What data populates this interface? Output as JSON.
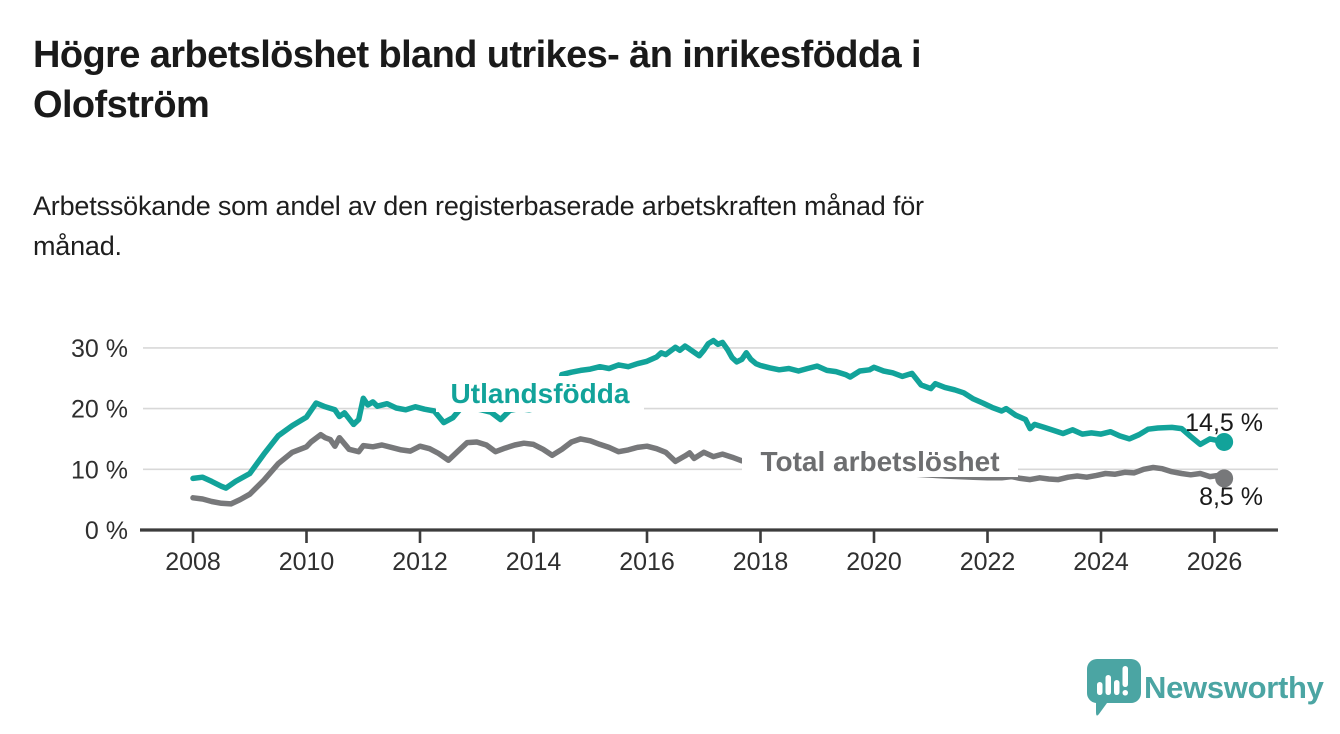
{
  "header": {
    "title_lines": [
      "Högre arbetslöshet bland utrikes- än inrikesfödda i",
      "Olofström"
    ],
    "subtitle_lines": [
      "Arbetssökande som andel av den registerbaserade arbetskraften månad för",
      "månad."
    ]
  },
  "footer": {
    "brand": "Newsworthy"
  },
  "colors": {
    "foreign_born_line": "#12a39a",
    "total_line": "#77787a",
    "total_label": "#6d6e70",
    "grid": "#d8d8d8",
    "axis": "#3c3c3c",
    "axis_text": "#2f2f2f",
    "end_label_text": "#1a1a1a",
    "logo_teal": "#4ba5a3"
  },
  "chart_data": {
    "type": "line",
    "title": "Högre arbetslöshet bland utrikes- än inrikesfödda i Olofström",
    "subtitle": "Arbetssökande som andel av den registerbaserade arbetskraften månad för månad.",
    "unit": "%",
    "grid": "horizontal",
    "legend_position": "inline-labels",
    "x_axis": {
      "tick_values": [
        2008,
        2010,
        2012,
        2014,
        2016,
        2018,
        2020,
        2022,
        2024,
        2026
      ],
      "tick_labels": [
        "2008",
        "2010",
        "2012",
        "2014",
        "2016",
        "2018",
        "2020",
        "2022",
        "2024",
        "2026"
      ],
      "range": [
        2007.1,
        2027.1
      ]
    },
    "y_axis": {
      "tick_values": [
        0,
        10,
        20,
        30
      ],
      "tick_labels": [
        "0 %",
        "10 %",
        "20 %",
        "30 %"
      ],
      "range": [
        0,
        33
      ]
    },
    "series": [
      {
        "name": "Utlandsfödda",
        "label": "Utlandsfödda",
        "color": "#12a39a",
        "label_color": "#12a39a",
        "end_label": "14,5 %",
        "end_value": 14.5,
        "points": [
          [
            2008.0,
            8.5
          ],
          [
            2008.17,
            8.7
          ],
          [
            2008.33,
            8.0
          ],
          [
            2008.5,
            7.2
          ],
          [
            2008.58,
            6.9
          ],
          [
            2008.75,
            8.0
          ],
          [
            2009.0,
            9.3
          ],
          [
            2009.25,
            12.5
          ],
          [
            2009.5,
            15.5
          ],
          [
            2009.75,
            17.2
          ],
          [
            2010.0,
            18.6
          ],
          [
            2010.17,
            20.9
          ],
          [
            2010.33,
            20.3
          ],
          [
            2010.5,
            19.8
          ],
          [
            2010.58,
            18.7
          ],
          [
            2010.67,
            19.3
          ],
          [
            2010.83,
            17.4
          ],
          [
            2010.92,
            18.2
          ],
          [
            2011.0,
            21.7
          ],
          [
            2011.08,
            20.6
          ],
          [
            2011.17,
            21.1
          ],
          [
            2011.25,
            20.4
          ],
          [
            2011.42,
            20.8
          ],
          [
            2011.58,
            20.1
          ],
          [
            2011.75,
            19.8
          ],
          [
            2011.92,
            20.3
          ],
          [
            2012.08,
            19.9
          ],
          [
            2012.25,
            19.6
          ],
          [
            2012.42,
            17.7
          ],
          [
            2012.58,
            18.5
          ],
          [
            2012.75,
            20.4
          ],
          [
            2012.92,
            20.1
          ],
          [
            2013.08,
            19.8
          ],
          [
            2013.25,
            19.4
          ],
          [
            2013.42,
            18.2
          ],
          [
            2013.58,
            19.7
          ],
          [
            2013.75,
            20.0
          ],
          [
            2013.92,
            19.8
          ],
          [
            2014.08,
            20.1
          ],
          [
            2014.25,
            20.0
          ],
          [
            2014.42,
            20.9
          ],
          [
            2014.5,
            25.6
          ],
          [
            2014.67,
            26.0
          ],
          [
            2014.83,
            26.3
          ],
          [
            2015.0,
            26.5
          ],
          [
            2015.17,
            26.9
          ],
          [
            2015.33,
            26.6
          ],
          [
            2015.5,
            27.2
          ],
          [
            2015.67,
            26.9
          ],
          [
            2015.83,
            27.4
          ],
          [
            2016.0,
            27.8
          ],
          [
            2016.17,
            28.5
          ],
          [
            2016.25,
            29.2
          ],
          [
            2016.33,
            28.9
          ],
          [
            2016.5,
            30.1
          ],
          [
            2016.58,
            29.6
          ],
          [
            2016.67,
            30.3
          ],
          [
            2016.75,
            29.8
          ],
          [
            2016.92,
            28.7
          ],
          [
            2017.0,
            29.6
          ],
          [
            2017.08,
            30.7
          ],
          [
            2017.17,
            31.2
          ],
          [
            2017.25,
            30.6
          ],
          [
            2017.33,
            30.9
          ],
          [
            2017.42,
            29.7
          ],
          [
            2017.5,
            28.4
          ],
          [
            2017.58,
            27.7
          ],
          [
            2017.67,
            28.1
          ],
          [
            2017.75,
            29.2
          ],
          [
            2017.83,
            28.1
          ],
          [
            2017.92,
            27.4
          ],
          [
            2018.0,
            27.1
          ],
          [
            2018.17,
            26.7
          ],
          [
            2018.33,
            26.4
          ],
          [
            2018.5,
            26.6
          ],
          [
            2018.67,
            26.2
          ],
          [
            2018.83,
            26.6
          ],
          [
            2019.0,
            27.0
          ],
          [
            2019.17,
            26.3
          ],
          [
            2019.33,
            26.1
          ],
          [
            2019.5,
            25.6
          ],
          [
            2019.58,
            25.2
          ],
          [
            2019.75,
            26.2
          ],
          [
            2019.92,
            26.4
          ],
          [
            2020.0,
            26.8
          ],
          [
            2020.17,
            26.2
          ],
          [
            2020.33,
            25.9
          ],
          [
            2020.5,
            25.3
          ],
          [
            2020.67,
            25.8
          ],
          [
            2020.83,
            23.9
          ],
          [
            2021.0,
            23.3
          ],
          [
            2021.08,
            24.1
          ],
          [
            2021.25,
            23.5
          ],
          [
            2021.42,
            23.1
          ],
          [
            2021.58,
            22.6
          ],
          [
            2021.75,
            21.6
          ],
          [
            2021.92,
            20.9
          ],
          [
            2022.08,
            20.2
          ],
          [
            2022.25,
            19.6
          ],
          [
            2022.33,
            20.0
          ],
          [
            2022.5,
            18.9
          ],
          [
            2022.67,
            18.2
          ],
          [
            2022.75,
            16.7
          ],
          [
            2022.83,
            17.4
          ],
          [
            2023.0,
            16.9
          ],
          [
            2023.17,
            16.4
          ],
          [
            2023.33,
            15.9
          ],
          [
            2023.5,
            16.5
          ],
          [
            2023.67,
            15.8
          ],
          [
            2023.83,
            16.0
          ],
          [
            2024.0,
            15.8
          ],
          [
            2024.17,
            16.2
          ],
          [
            2024.33,
            15.5
          ],
          [
            2024.5,
            15.0
          ],
          [
            2024.67,
            15.7
          ],
          [
            2024.83,
            16.6
          ],
          [
            2025.0,
            16.8
          ],
          [
            2025.25,
            16.9
          ],
          [
            2025.42,
            16.7
          ],
          [
            2025.58,
            15.4
          ],
          [
            2025.75,
            14.1
          ],
          [
            2025.92,
            15.0
          ],
          [
            2026.08,
            14.7
          ],
          [
            2026.17,
            14.5
          ]
        ]
      },
      {
        "name": "Total arbetslöshet",
        "label": "Total arbetslöshet",
        "color": "#77787a",
        "label_color": "#6d6e70",
        "end_label": "8,5 %",
        "end_value": 8.5,
        "points": [
          [
            2008.0,
            5.3
          ],
          [
            2008.17,
            5.1
          ],
          [
            2008.33,
            4.7
          ],
          [
            2008.5,
            4.4
          ],
          [
            2008.67,
            4.3
          ],
          [
            2008.83,
            5.0
          ],
          [
            2009.0,
            5.9
          ],
          [
            2009.25,
            8.2
          ],
          [
            2009.5,
            10.9
          ],
          [
            2009.75,
            12.8
          ],
          [
            2010.0,
            13.7
          ],
          [
            2010.08,
            14.5
          ],
          [
            2010.25,
            15.7
          ],
          [
            2010.33,
            15.2
          ],
          [
            2010.42,
            14.9
          ],
          [
            2010.5,
            13.8
          ],
          [
            2010.58,
            15.2
          ],
          [
            2010.75,
            13.3
          ],
          [
            2010.92,
            12.9
          ],
          [
            2011.0,
            13.9
          ],
          [
            2011.17,
            13.7
          ],
          [
            2011.33,
            14.0
          ],
          [
            2011.5,
            13.6
          ],
          [
            2011.67,
            13.2
          ],
          [
            2011.83,
            13.0
          ],
          [
            2012.0,
            13.8
          ],
          [
            2012.17,
            13.4
          ],
          [
            2012.33,
            12.6
          ],
          [
            2012.5,
            11.5
          ],
          [
            2012.67,
            13.0
          ],
          [
            2012.83,
            14.4
          ],
          [
            2013.0,
            14.5
          ],
          [
            2013.17,
            14.0
          ],
          [
            2013.33,
            12.9
          ],
          [
            2013.5,
            13.5
          ],
          [
            2013.67,
            14.0
          ],
          [
            2013.83,
            14.3
          ],
          [
            2014.0,
            14.1
          ],
          [
            2014.17,
            13.3
          ],
          [
            2014.33,
            12.3
          ],
          [
            2014.5,
            13.3
          ],
          [
            2014.67,
            14.5
          ],
          [
            2014.83,
            15.0
          ],
          [
            2015.0,
            14.7
          ],
          [
            2015.17,
            14.1
          ],
          [
            2015.33,
            13.6
          ],
          [
            2015.5,
            12.9
          ],
          [
            2015.67,
            13.2
          ],
          [
            2015.83,
            13.6
          ],
          [
            2016.0,
            13.8
          ],
          [
            2016.17,
            13.4
          ],
          [
            2016.33,
            12.8
          ],
          [
            2016.5,
            11.3
          ],
          [
            2016.67,
            12.2
          ],
          [
            2016.75,
            12.7
          ],
          [
            2016.83,
            11.8
          ],
          [
            2017.0,
            12.8
          ],
          [
            2017.17,
            12.1
          ],
          [
            2017.33,
            12.5
          ],
          [
            2017.5,
            12.0
          ],
          [
            2017.67,
            11.4
          ],
          [
            2017.92,
            11.1
          ],
          [
            2018.25,
            10.9
          ],
          [
            2018.75,
            10.5
          ],
          [
            2019.25,
            10.1
          ],
          [
            2019.75,
            9.8
          ],
          [
            2020.25,
            9.5
          ],
          [
            2020.75,
            9.2
          ],
          [
            2021.25,
            8.9
          ],
          [
            2021.75,
            8.7
          ],
          [
            2022.0,
            8.6
          ],
          [
            2022.25,
            8.6
          ],
          [
            2022.42,
            8.8
          ],
          [
            2022.58,
            8.5
          ],
          [
            2022.75,
            8.3
          ],
          [
            2022.92,
            8.6
          ],
          [
            2023.08,
            8.4
          ],
          [
            2023.25,
            8.3
          ],
          [
            2023.42,
            8.7
          ],
          [
            2023.58,
            8.9
          ],
          [
            2023.75,
            8.7
          ],
          [
            2023.92,
            9.0
          ],
          [
            2024.08,
            9.3
          ],
          [
            2024.25,
            9.2
          ],
          [
            2024.42,
            9.5
          ],
          [
            2024.58,
            9.4
          ],
          [
            2024.75,
            10.0
          ],
          [
            2024.92,
            10.3
          ],
          [
            2025.08,
            10.1
          ],
          [
            2025.25,
            9.6
          ],
          [
            2025.42,
            9.3
          ],
          [
            2025.58,
            9.1
          ],
          [
            2025.75,
            9.3
          ],
          [
            2025.92,
            8.8
          ],
          [
            2026.08,
            9.0
          ],
          [
            2026.17,
            8.5
          ]
        ]
      }
    ]
  }
}
